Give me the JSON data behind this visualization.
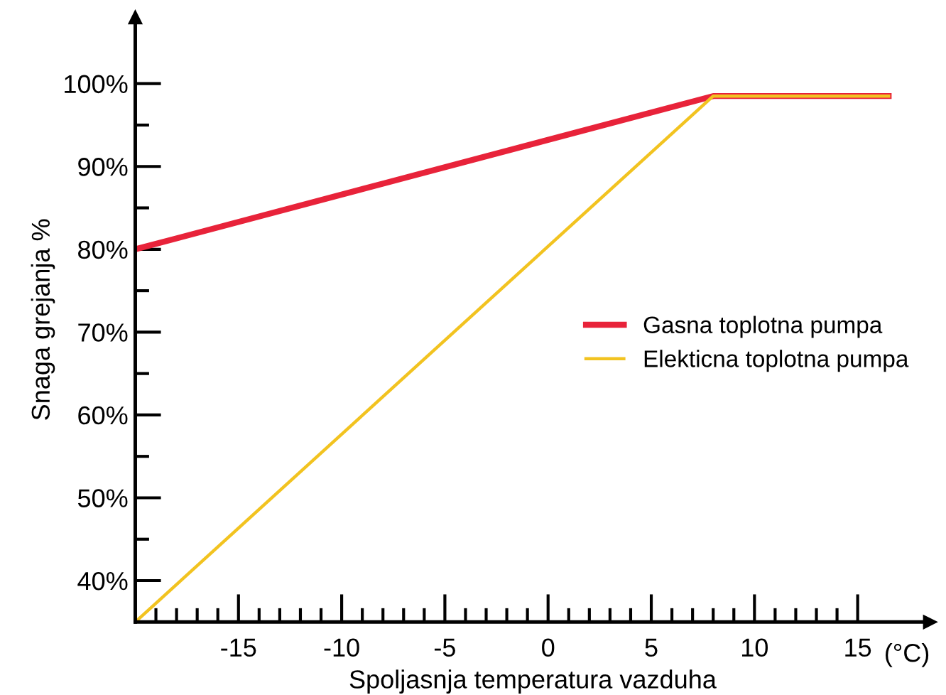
{
  "chart_data": {
    "type": "line",
    "xlabel": "Spoljasnja temperatura vazduha",
    "ylabel": "Snaga grejanja %",
    "annotations": [
      "(°C)"
    ],
    "series": [
      {
        "name": "Gasna toplotna pumpa",
        "color": "#e8233a",
        "x": [
          -20,
          8,
          16.5
        ],
        "values": [
          80,
          98.5,
          98.5
        ]
      },
      {
        "name": "Elekticna toplotna pumpa",
        "color": "#f2c320",
        "x": [
          -20,
          8,
          16.5
        ],
        "values": [
          35,
          98.5,
          98.5
        ]
      }
    ],
    "xlim": [
      -20,
      18.5
    ],
    "ylim": [
      35,
      108
    ],
    "xticks": [
      {
        "value": -19,
        "label": null
      },
      {
        "value": -18,
        "label": null
      },
      {
        "value": -17,
        "label": null
      },
      {
        "value": -16,
        "label": null
      },
      -15,
      {
        "value": -14,
        "label": null
      },
      {
        "value": -13,
        "label": null
      },
      {
        "value": -12,
        "label": null
      },
      {
        "value": -11,
        "label": null
      },
      -10,
      {
        "value": -9,
        "label": null
      },
      {
        "value": -8,
        "label": null
      },
      {
        "value": -7,
        "label": null
      },
      {
        "value": -6,
        "label": null
      },
      -5,
      {
        "value": -4,
        "label": null
      },
      {
        "value": -3,
        "label": null
      },
      {
        "value": -2,
        "label": null
      },
      {
        "value": -1,
        "label": null
      },
      0,
      {
        "value": 1,
        "label": null
      },
      {
        "value": 2,
        "label": null
      },
      {
        "value": 3,
        "label": null
      },
      {
        "value": 4,
        "label": null
      },
      5,
      {
        "value": 6,
        "label": null
      },
      {
        "value": 7,
        "label": null
      },
      {
        "value": 8,
        "label": null
      },
      {
        "value": 9,
        "label": null
      },
      10,
      {
        "value": 11,
        "label": null
      },
      {
        "value": 12,
        "label": null
      },
      {
        "value": 13,
        "label": null
      },
      {
        "value": 14,
        "label": null
      },
      15
    ],
    "yticks": [
      {
        "value": 40,
        "label": "40%"
      },
      {
        "value": 45,
        "label": null
      },
      {
        "value": 50,
        "label": "50%"
      },
      {
        "value": 55,
        "label": null
      },
      {
        "value": 60,
        "label": "60%"
      },
      {
        "value": 65,
        "label": null
      },
      {
        "value": 70,
        "label": "70%"
      },
      {
        "value": 75,
        "label": null
      },
      {
        "value": 80,
        "label": "80%"
      },
      {
        "value": 85,
        "label": null
      },
      {
        "value": 90,
        "label": "90%"
      },
      {
        "value": 95,
        "label": null
      },
      {
        "value": 100,
        "label": "100%"
      }
    ],
    "grid": false,
    "legend": "right",
    "marker": "none",
    "line_style": "solid"
  }
}
